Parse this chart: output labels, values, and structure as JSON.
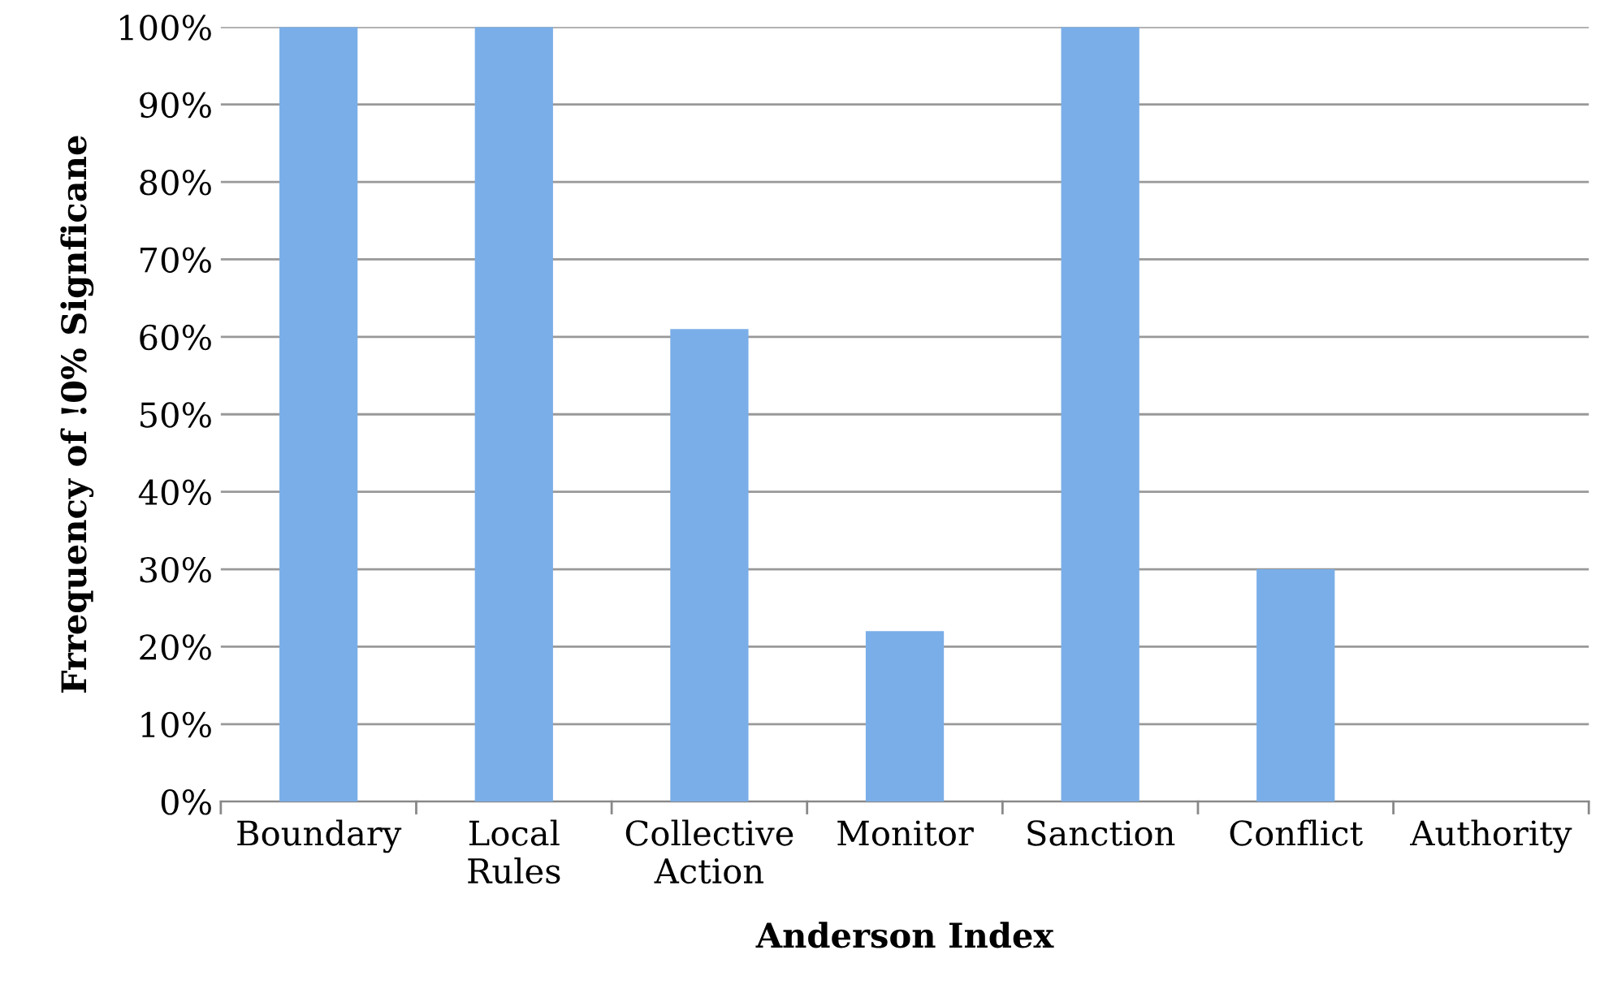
{
  "chart_data": {
    "type": "bar",
    "xlabel": "Anderson Index",
    "ylabel": "Frrequency of !0% Signficane",
    "categories": [
      "Boundary",
      "Local Rules",
      "Collective Action",
      "Monitor",
      "Sanction",
      "Conflict",
      "Authority"
    ],
    "values": [
      100,
      100,
      61,
      22,
      100,
      30,
      0
    ],
    "color": "#7aaee8",
    "ylim": [
      0,
      100
    ],
    "yticks": [
      {
        "value": 0,
        "label": "0%"
      },
      {
        "value": 10,
        "label": "10%"
      },
      {
        "value": 20,
        "label": "20%"
      },
      {
        "value": 30,
        "label": "30%"
      },
      {
        "value": 40,
        "label": "40%"
      },
      {
        "value": 50,
        "label": "50%"
      },
      {
        "value": 60,
        "label": "60%"
      },
      {
        "value": 70,
        "label": "70%"
      },
      {
        "value": 80,
        "label": "80%"
      },
      {
        "value": 90,
        "label": "90%"
      },
      {
        "value": 100,
        "label": "100%"
      }
    ],
    "grid": "y"
  }
}
